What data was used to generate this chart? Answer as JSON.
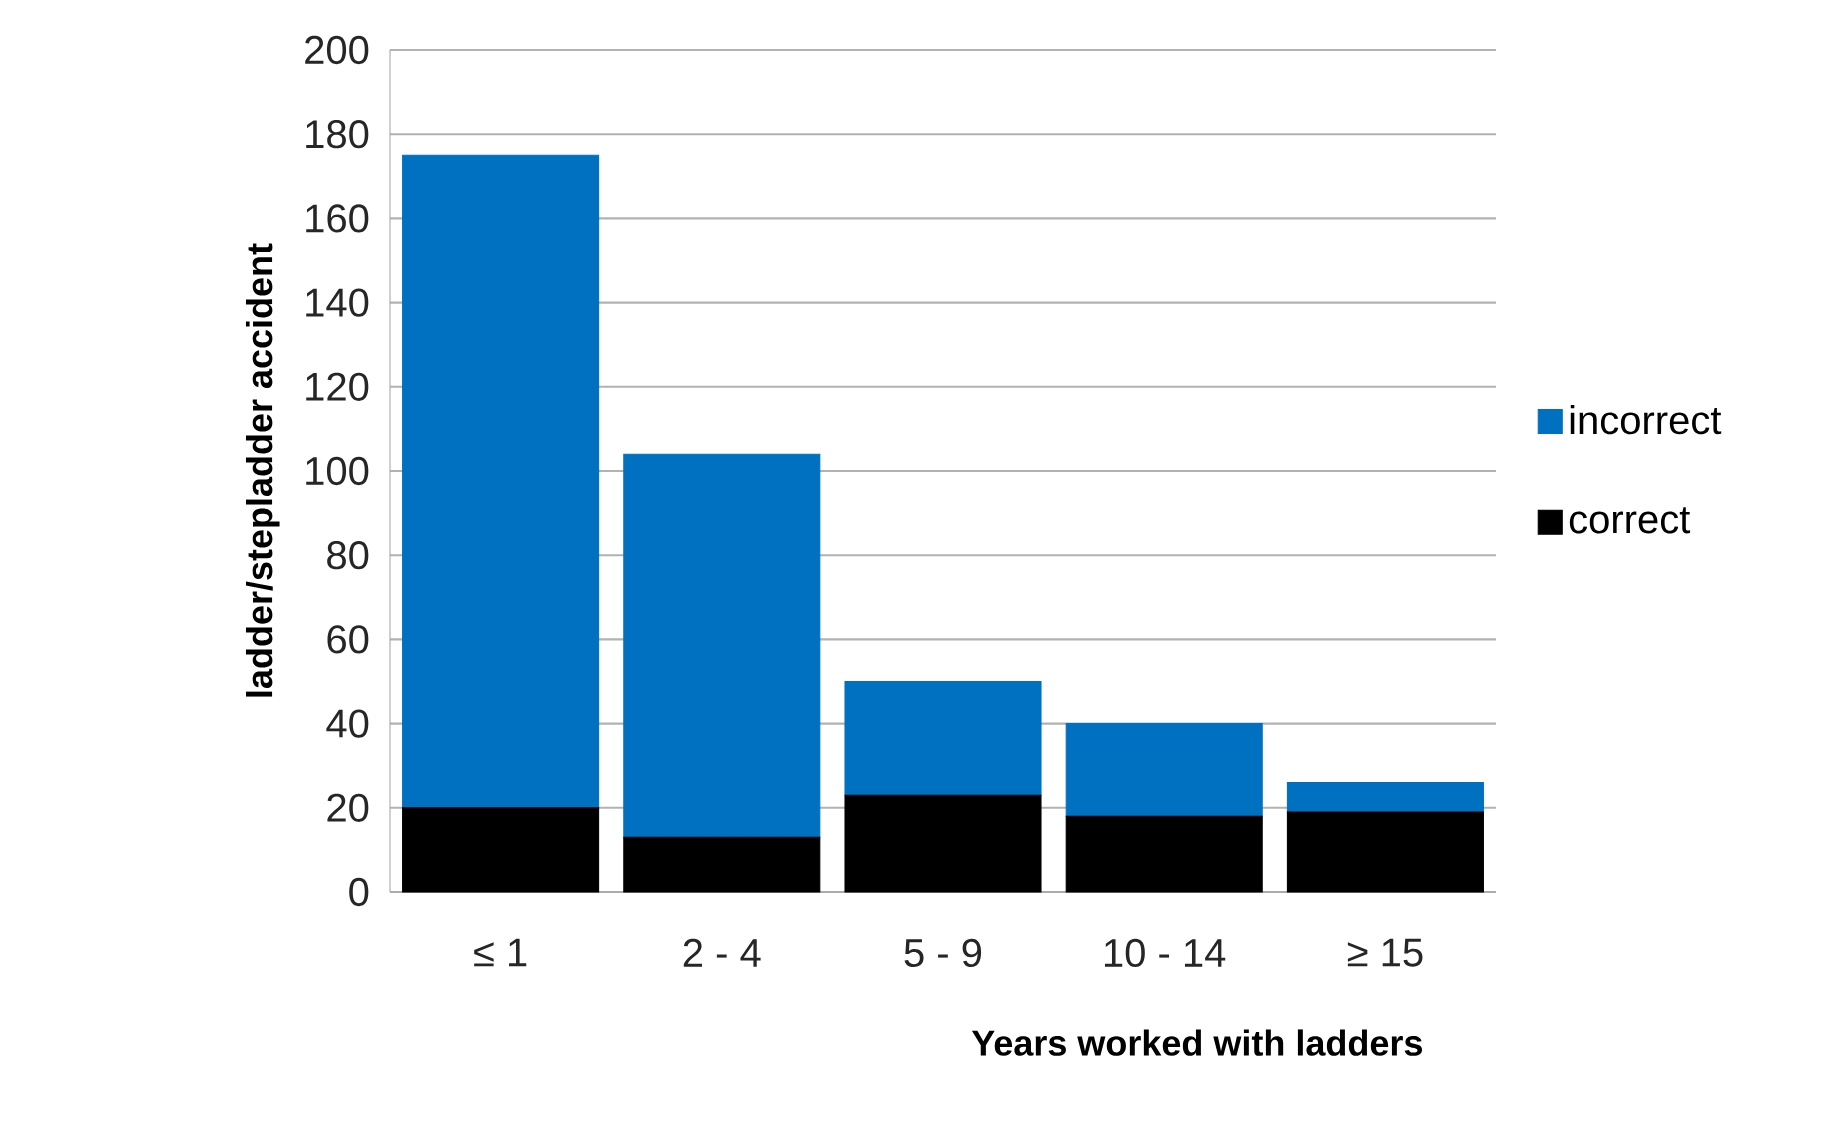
{
  "chart_data": {
    "type": "bar",
    "stacked": true,
    "xlabel": "Years worked with ladders",
    "ylabel": "ladder/stepladder accident",
    "categories": [
      "≤ 1",
      "2 - 4",
      "5 - 9",
      "10 - 14",
      "≥ 15"
    ],
    "series": [
      {
        "name": "correct",
        "color": "#000000",
        "values": [
          20,
          13,
          23,
          18,
          19
        ]
      },
      {
        "name": "incorrect",
        "color": "#0070c0",
        "values": [
          155,
          91,
          27,
          22,
          7
        ]
      }
    ],
    "ylim": [
      0,
      200
    ],
    "yticks": [
      0,
      20,
      40,
      60,
      80,
      100,
      120,
      140,
      160,
      180,
      200
    ],
    "grid": "y",
    "legend": "right"
  }
}
